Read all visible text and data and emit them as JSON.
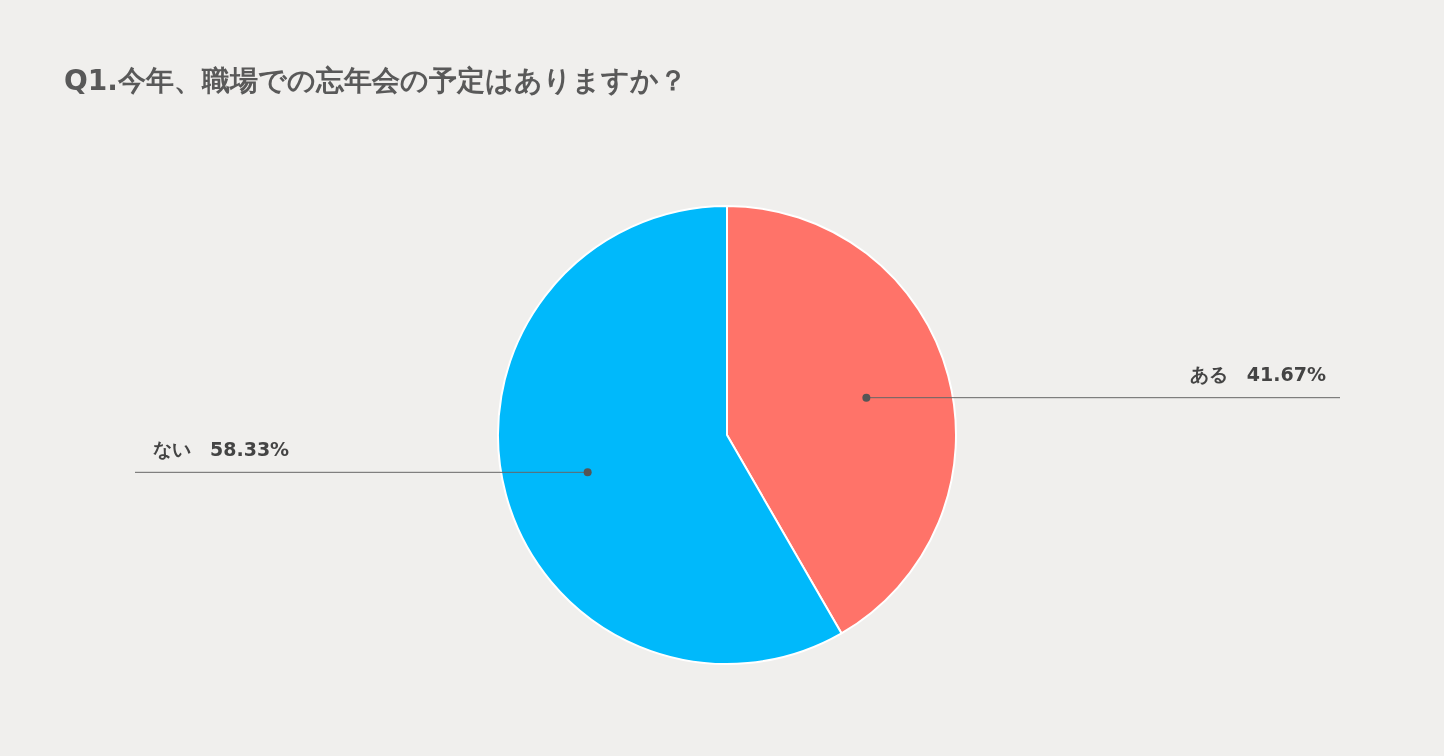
{
  "chart_data": {
    "type": "pie",
    "title": "Q1.今年、職場での忘年会の予定はありますか？",
    "categories": [
      "ある",
      "ない"
    ],
    "values": [
      41.67,
      58.33
    ],
    "value_labels": [
      "41.67%",
      "58.33%"
    ],
    "colors": [
      "#ff7369",
      "#00b9fb"
    ],
    "legend": false
  }
}
